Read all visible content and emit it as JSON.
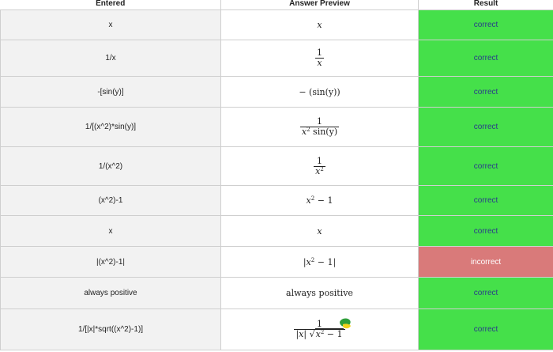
{
  "headers": {
    "entered": "Entered",
    "preview": "Answer Preview",
    "result": "Result"
  },
  "rows": [
    {
      "entered": "x",
      "result": "correct",
      "status": "#45e04a"
    },
    {
      "entered": "1/x",
      "result": "correct",
      "status": "#45e04a"
    },
    {
      "entered": "-[sin(y)]",
      "result": "correct",
      "status": "#45e04a"
    },
    {
      "entered": "1/[(x^2)*sin(y)]",
      "result": "correct",
      "status": "#45e04a"
    },
    {
      "entered": "1/(x^2)",
      "result": "correct",
      "status": "#45e04a"
    },
    {
      "entered": "(x^2)-1",
      "result": "correct",
      "status": "#45e04a"
    },
    {
      "entered": "x",
      "result": "correct",
      "status": "#45e04a"
    },
    {
      "entered": "|(x^2)-1|",
      "result": "incorrect",
      "status": "#d97a7a"
    },
    {
      "entered": "always positive",
      "result": "correct",
      "status": "#45e04a"
    },
    {
      "entered": "1/[|x|*sqrt((x^2)-1)]",
      "result": "correct",
      "status": "#45e04a"
    }
  ],
  "preview": {
    "r0": {
      "x": "x"
    },
    "r1": {
      "num": "1",
      "den": "x"
    },
    "r2": {
      "minus": "−",
      "expr": "(sin(y))"
    },
    "r3": {
      "num": "1",
      "den_x": "x",
      "den_exp": "2",
      "den_rest": " sin(y)"
    },
    "r4": {
      "num": "1",
      "den_x": "x",
      "den_exp": "2"
    },
    "r5": {
      "x": "x",
      "exp": "2",
      "rest": " − 1"
    },
    "r6": {
      "x": "x"
    },
    "r7": {
      "bar_l": "|",
      "x": "x",
      "exp": "2",
      "rest": " − 1",
      "bar_r": "|"
    },
    "r8": {
      "text": "always positive"
    },
    "r9": {
      "num": "1",
      "abs": "|x|",
      "sqrt": "√",
      "x": "x",
      "exp": "2",
      "rest": " − 1"
    }
  },
  "sticker_icon": "cursor-blob-icon",
  "colors": {
    "correct_bg": "#45e04a",
    "incorrect_bg": "#d97a7a",
    "correct_text": "#2a3a8a"
  }
}
